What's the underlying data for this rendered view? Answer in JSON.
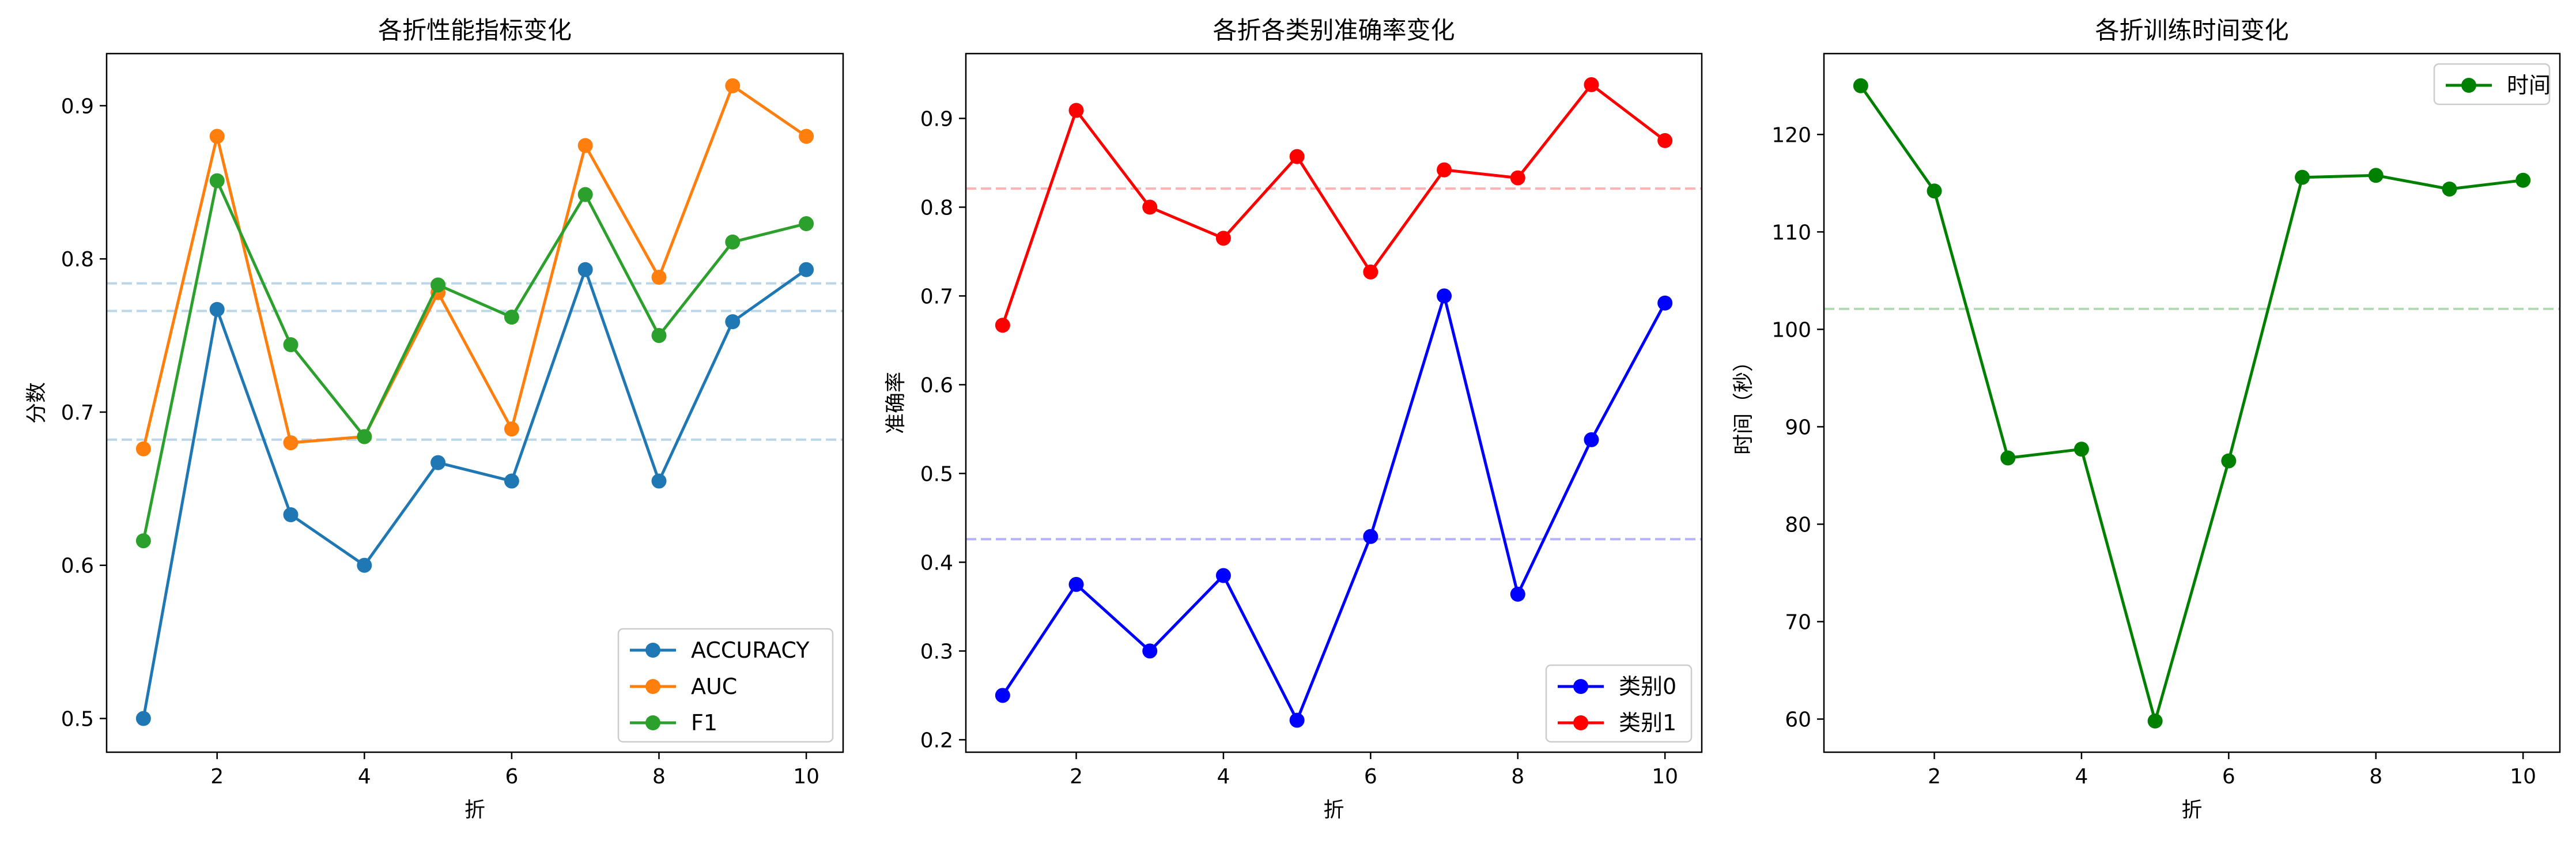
{
  "chart_data": [
    {
      "type": "line",
      "title": "各折性能指标变化",
      "xlabel": "折",
      "ylabel": "分数",
      "x": [
        1,
        2,
        3,
        4,
        5,
        6,
        7,
        8,
        9,
        10
      ],
      "xlim": [
        0.5,
        10.5
      ],
      "ylim": [
        0.478,
        0.934
      ],
      "xticks": [
        2,
        4,
        6,
        8,
        10
      ],
      "yticks": [
        0.5,
        0.6,
        0.7,
        0.8,
        0.9
      ],
      "yticklabels": [
        "0.5",
        "0.6",
        "0.7",
        "0.8",
        "0.9"
      ],
      "legend_position": "lower-right",
      "series": [
        {
          "name": "ACCURACY",
          "color": "#1f77b4",
          "values": [
            0.5,
            0.767,
            0.633,
            0.6,
            0.667,
            0.655,
            0.793,
            0.655,
            0.759,
            0.793
          ]
        },
        {
          "name": "AUC",
          "color": "#ff7f0e",
          "values": [
            0.676,
            0.88,
            0.68,
            0.684,
            0.778,
            0.689,
            0.874,
            0.788,
            0.913,
            0.88
          ]
        },
        {
          "name": "F1",
          "color": "#2ca02c",
          "values": [
            0.616,
            0.851,
            0.744,
            0.684,
            0.783,
            0.762,
            0.842,
            0.75,
            0.811,
            0.823
          ]
        }
      ],
      "reference_lines": [
        {
          "y": 0.682,
          "color": "#1f77b4"
        },
        {
          "y": 0.766,
          "color": "#1f77b4"
        },
        {
          "y": 0.784,
          "color": "#1f77b4"
        }
      ]
    },
    {
      "type": "line",
      "title": "各折各类别准确率变化",
      "xlabel": "折",
      "ylabel": "准确率",
      "x": [
        1,
        2,
        3,
        4,
        5,
        6,
        7,
        8,
        9,
        10
      ],
      "xlim": [
        0.5,
        10.5
      ],
      "ylim": [
        0.186,
        0.973
      ],
      "xticks": [
        2,
        4,
        6,
        8,
        10
      ],
      "yticks": [
        0.2,
        0.3,
        0.4,
        0.5,
        0.6,
        0.7,
        0.8,
        0.9
      ],
      "yticklabels": [
        "0.2",
        "0.3",
        "0.4",
        "0.5",
        "0.6",
        "0.7",
        "0.8",
        "0.9"
      ],
      "legend_position": "lower-right",
      "series": [
        {
          "name": "类别0",
          "color": "#0000ff",
          "values": [
            0.25,
            0.375,
            0.3,
            0.385,
            0.222,
            0.429,
            0.7,
            0.364,
            0.538,
            0.692
          ]
        },
        {
          "name": "类别1",
          "color": "#ff0000",
          "values": [
            0.667,
            0.909,
            0.8,
            0.765,
            0.857,
            0.727,
            0.842,
            0.833,
            0.938,
            0.875
          ]
        }
      ],
      "reference_lines": [
        {
          "y": 0.426,
          "color": "#0000ff"
        },
        {
          "y": 0.821,
          "color": "#ff0000"
        }
      ]
    },
    {
      "type": "line",
      "title": "各折训练时间变化",
      "xlabel": "折",
      "ylabel": "时间（秒）",
      "x": [
        1,
        2,
        3,
        4,
        5,
        6,
        7,
        8,
        9,
        10
      ],
      "xlim": [
        0.5,
        10.5
      ],
      "ylim": [
        56.6,
        128.3
      ],
      "xticks": [
        2,
        4,
        6,
        8,
        10
      ],
      "yticks": [
        60,
        70,
        80,
        90,
        100,
        110,
        120
      ],
      "yticklabels": [
        "60",
        "70",
        "80",
        "90",
        "100",
        "110",
        "120"
      ],
      "legend_position": "upper-right",
      "series": [
        {
          "name": "时间",
          "color": "#008000",
          "values": [
            125.0,
            114.2,
            86.8,
            87.7,
            59.8,
            86.5,
            115.6,
            115.8,
            114.4,
            115.3
          ]
        }
      ],
      "reference_lines": [
        {
          "y": 102.1,
          "color": "#008000"
        }
      ]
    }
  ]
}
